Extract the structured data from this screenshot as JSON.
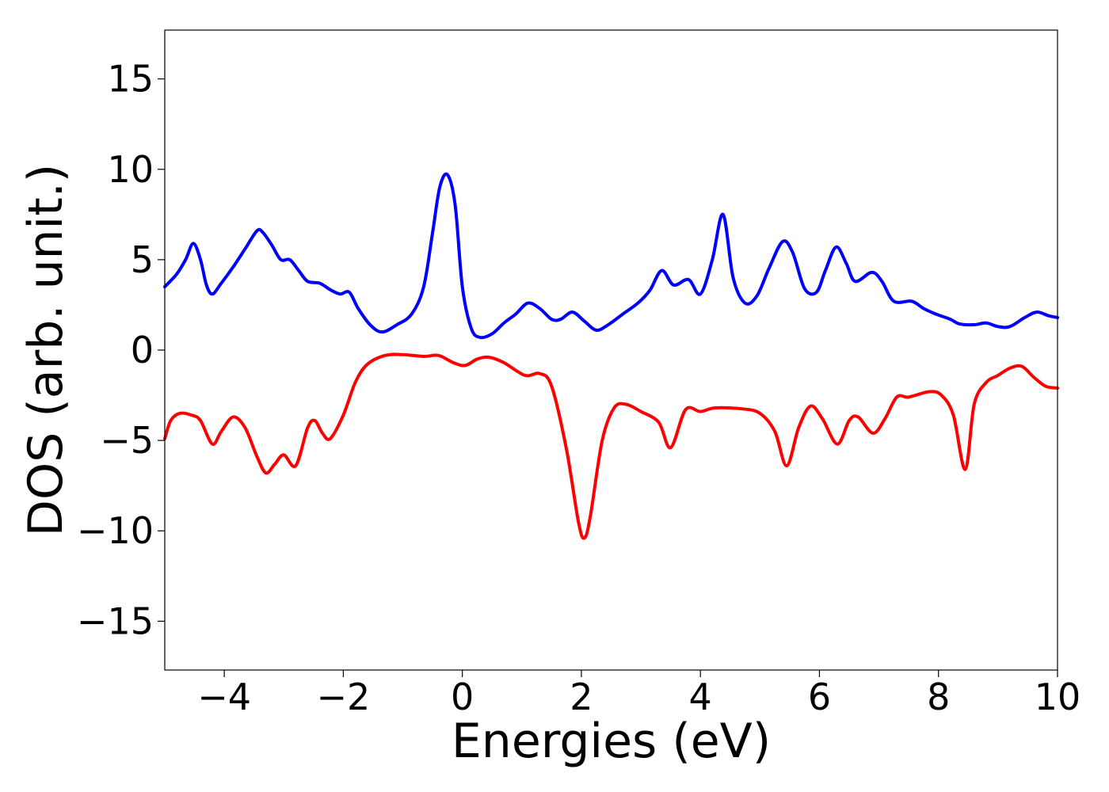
{
  "chart_data": {
    "type": "line",
    "title": "",
    "xlabel": "Energies (eV)",
    "ylabel": "DOS (arb. unit.)",
    "xlim": [
      -5,
      10
    ],
    "ylim": [
      -17.7,
      17.7
    ],
    "grid": false,
    "x_ticks": [
      -4,
      -2,
      0,
      2,
      4,
      6,
      8,
      10
    ],
    "x_tick_labels": [
      "−4",
      "−2",
      "0",
      "2",
      "4",
      "6",
      "8",
      "10"
    ],
    "y_ticks": [
      15,
      10,
      5,
      0,
      -5,
      -10,
      -15
    ],
    "y_tick_labels": [
      "15",
      "10",
      "5",
      "0",
      "−5",
      "−10",
      "−15"
    ],
    "series": [
      {
        "color": "#0000ff",
        "points": [
          [
            -5.0,
            3.5
          ],
          [
            -4.8,
            4.2
          ],
          [
            -4.65,
            5.0
          ],
          [
            -4.52,
            5.9
          ],
          [
            -4.4,
            5.0
          ],
          [
            -4.3,
            3.6
          ],
          [
            -4.2,
            3.1
          ],
          [
            -4.05,
            3.7
          ],
          [
            -3.85,
            4.6
          ],
          [
            -3.65,
            5.6
          ],
          [
            -3.45,
            6.6
          ],
          [
            -3.35,
            6.5
          ],
          [
            -3.2,
            5.8
          ],
          [
            -3.05,
            5.0
          ],
          [
            -2.9,
            5.0
          ],
          [
            -2.75,
            4.4
          ],
          [
            -2.6,
            3.8
          ],
          [
            -2.4,
            3.7
          ],
          [
            -2.2,
            3.3
          ],
          [
            -2.05,
            3.1
          ],
          [
            -1.9,
            3.2
          ],
          [
            -1.75,
            2.3
          ],
          [
            -1.55,
            1.4
          ],
          [
            -1.35,
            1.0
          ],
          [
            -1.1,
            1.4
          ],
          [
            -0.85,
            2.0
          ],
          [
            -0.65,
            3.5
          ],
          [
            -0.5,
            6.5
          ],
          [
            -0.38,
            9.0
          ],
          [
            -0.25,
            9.7
          ],
          [
            -0.12,
            8.0
          ],
          [
            0.0,
            3.5
          ],
          [
            0.15,
            1.2
          ],
          [
            0.3,
            0.7
          ],
          [
            0.5,
            0.9
          ],
          [
            0.7,
            1.5
          ],
          [
            0.9,
            2.0
          ],
          [
            1.1,
            2.6
          ],
          [
            1.3,
            2.3
          ],
          [
            1.5,
            1.7
          ],
          [
            1.65,
            1.7
          ],
          [
            1.85,
            2.1
          ],
          [
            2.05,
            1.6
          ],
          [
            2.25,
            1.1
          ],
          [
            2.45,
            1.4
          ],
          [
            2.7,
            2.0
          ],
          [
            2.95,
            2.6
          ],
          [
            3.15,
            3.3
          ],
          [
            3.35,
            4.4
          ],
          [
            3.55,
            3.6
          ],
          [
            3.8,
            3.9
          ],
          [
            4.0,
            3.1
          ],
          [
            4.2,
            5.0
          ],
          [
            4.38,
            7.5
          ],
          [
            4.55,
            4.0
          ],
          [
            4.75,
            2.6
          ],
          [
            4.95,
            3.0
          ],
          [
            5.15,
            4.5
          ],
          [
            5.38,
            6.0
          ],
          [
            5.55,
            5.4
          ],
          [
            5.75,
            3.4
          ],
          [
            5.95,
            3.2
          ],
          [
            6.1,
            4.4
          ],
          [
            6.28,
            5.7
          ],
          [
            6.45,
            4.8
          ],
          [
            6.6,
            3.8
          ],
          [
            6.88,
            4.3
          ],
          [
            7.05,
            3.8
          ],
          [
            7.25,
            2.7
          ],
          [
            7.55,
            2.7
          ],
          [
            7.75,
            2.3
          ],
          [
            7.95,
            2.0
          ],
          [
            8.2,
            1.7
          ],
          [
            8.35,
            1.45
          ],
          [
            8.6,
            1.4
          ],
          [
            8.8,
            1.5
          ],
          [
            9.0,
            1.3
          ],
          [
            9.2,
            1.3
          ],
          [
            9.45,
            1.8
          ],
          [
            9.65,
            2.1
          ],
          [
            9.85,
            1.9
          ],
          [
            10.0,
            1.8
          ]
        ]
      },
      {
        "color": "#ff0000",
        "points": [
          [
            -5.0,
            -4.9
          ],
          [
            -4.9,
            -3.9
          ],
          [
            -4.75,
            -3.5
          ],
          [
            -4.55,
            -3.6
          ],
          [
            -4.4,
            -3.9
          ],
          [
            -4.2,
            -5.2
          ],
          [
            -4.05,
            -4.5
          ],
          [
            -3.85,
            -3.7
          ],
          [
            -3.65,
            -4.3
          ],
          [
            -3.45,
            -5.9
          ],
          [
            -3.3,
            -6.8
          ],
          [
            -3.15,
            -6.3
          ],
          [
            -3.0,
            -5.8
          ],
          [
            -2.8,
            -6.4
          ],
          [
            -2.6,
            -4.3
          ],
          [
            -2.48,
            -3.9
          ],
          [
            -2.35,
            -4.6
          ],
          [
            -2.22,
            -4.9
          ],
          [
            -2.0,
            -3.6
          ],
          [
            -1.8,
            -1.8
          ],
          [
            -1.6,
            -0.8
          ],
          [
            -1.3,
            -0.3
          ],
          [
            -1.0,
            -0.25
          ],
          [
            -0.65,
            -0.35
          ],
          [
            -0.4,
            -0.3
          ],
          [
            -0.15,
            -0.7
          ],
          [
            0.05,
            -0.85
          ],
          [
            0.25,
            -0.5
          ],
          [
            0.45,
            -0.4
          ],
          [
            0.7,
            -0.7
          ],
          [
            1.05,
            -1.4
          ],
          [
            1.3,
            -1.3
          ],
          [
            1.5,
            -2.0
          ],
          [
            1.75,
            -5.5
          ],
          [
            1.95,
            -9.5
          ],
          [
            2.05,
            -10.4
          ],
          [
            2.15,
            -9.2
          ],
          [
            2.35,
            -5.0
          ],
          [
            2.55,
            -3.2
          ],
          [
            2.75,
            -3.0
          ],
          [
            3.0,
            -3.4
          ],
          [
            3.3,
            -4.0
          ],
          [
            3.5,
            -5.4
          ],
          [
            3.75,
            -3.3
          ],
          [
            4.0,
            -3.4
          ],
          [
            4.25,
            -3.2
          ],
          [
            4.7,
            -3.25
          ],
          [
            5.0,
            -3.5
          ],
          [
            5.25,
            -4.5
          ],
          [
            5.45,
            -6.4
          ],
          [
            5.65,
            -4.3
          ],
          [
            5.85,
            -3.1
          ],
          [
            6.05,
            -3.8
          ],
          [
            6.3,
            -5.2
          ],
          [
            6.5,
            -3.9
          ],
          [
            6.65,
            -3.7
          ],
          [
            6.9,
            -4.6
          ],
          [
            7.1,
            -3.8
          ],
          [
            7.3,
            -2.6
          ],
          [
            7.5,
            -2.6
          ],
          [
            7.85,
            -2.3
          ],
          [
            8.05,
            -2.5
          ],
          [
            8.25,
            -3.6
          ],
          [
            8.45,
            -6.6
          ],
          [
            8.6,
            -3.0
          ],
          [
            8.8,
            -1.8
          ],
          [
            9.0,
            -1.4
          ],
          [
            9.2,
            -1.0
          ],
          [
            9.4,
            -0.9
          ],
          [
            9.6,
            -1.5
          ],
          [
            9.8,
            -2.0
          ],
          [
            10.0,
            -2.1
          ]
        ]
      }
    ]
  }
}
